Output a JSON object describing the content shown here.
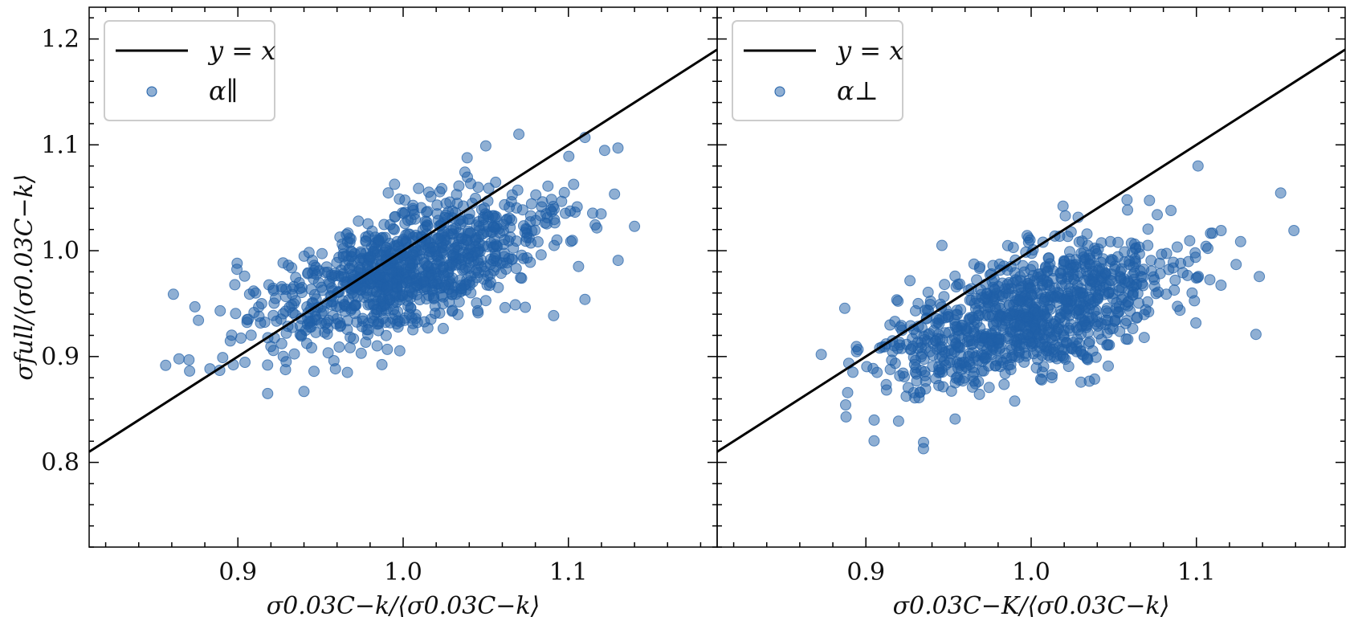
{
  "chart_data": [
    {
      "type": "scatter",
      "panel": "left",
      "xlim": [
        0.81,
        1.19
      ],
      "ylim": [
        0.72,
        1.23
      ],
      "xticks": [
        0.9,
        1.0,
        1.1
      ],
      "xtick_labels": [
        "0.9",
        "1.0",
        "1.1"
      ],
      "yticks": [
        0.8,
        0.9,
        1.0,
        1.1,
        1.2
      ],
      "ytick_labels": [
        "0.8",
        "0.9",
        "1.0",
        "1.1",
        "1.2"
      ],
      "xlabel": "σ0.03C−k/⟨σ0.03C−k⟩",
      "ylabel": "σfull/⟨σ0.03C−k⟩",
      "legend": {
        "location": "upper-left",
        "entries": [
          "y = x",
          "α∥"
        ]
      },
      "line": {
        "name": "y = x",
        "color": "#000000"
      },
      "series": {
        "name": "α∥",
        "color": "#1f5fa8",
        "mean_x": 1.0,
        "mean_y": 0.98,
        "sd_x": 0.045,
        "sd_y": 0.037,
        "correlation": 0.62,
        "n": 1000,
        "outliers": [
          [
            0.874,
            0.947
          ],
          [
            0.889,
            0.887
          ],
          [
            0.918,
            0.865
          ],
          [
            0.94,
            0.867
          ],
          [
            1.07,
            1.11
          ],
          [
            1.11,
            1.107
          ],
          [
            1.13,
            1.097
          ],
          [
            1.11,
            0.954
          ],
          [
            1.14,
            1.023
          ],
          [
            1.05,
            1.099
          ]
        ]
      }
    },
    {
      "type": "scatter",
      "panel": "right",
      "xlim": [
        0.81,
        1.19
      ],
      "ylim": [
        0.72,
        1.23
      ],
      "xticks": [
        0.9,
        1.0,
        1.1
      ],
      "xtick_labels": [
        "0.9",
        "1.0",
        "1.1"
      ],
      "yticks": [
        0.8,
        0.9,
        1.0,
        1.1,
        1.2
      ],
      "xlabel": "σ0.03C−K/⟨σ0.03C−k⟩",
      "legend": {
        "location": "upper-left",
        "entries": [
          "y = x",
          "α⊥"
        ]
      },
      "line": {
        "name": "y = x",
        "color": "#000000"
      },
      "series": {
        "name": "α⊥",
        "color": "#1f5fa8",
        "mean_x": 1.0,
        "mean_y": 0.94,
        "sd_x": 0.045,
        "sd_y": 0.035,
        "correlation": 0.6,
        "n": 1000,
        "outliers": [
          [
            0.873,
            0.902
          ],
          [
            0.888,
            0.843
          ],
          [
            0.905,
            0.84
          ],
          [
            0.954,
            0.841
          ],
          [
            1.101,
            1.08
          ],
          [
            1.124,
            0.987
          ],
          [
            1.136,
            0.921
          ],
          [
            1.159,
            1.019
          ],
          [
            0.946,
            1.005
          ]
        ]
      }
    }
  ]
}
